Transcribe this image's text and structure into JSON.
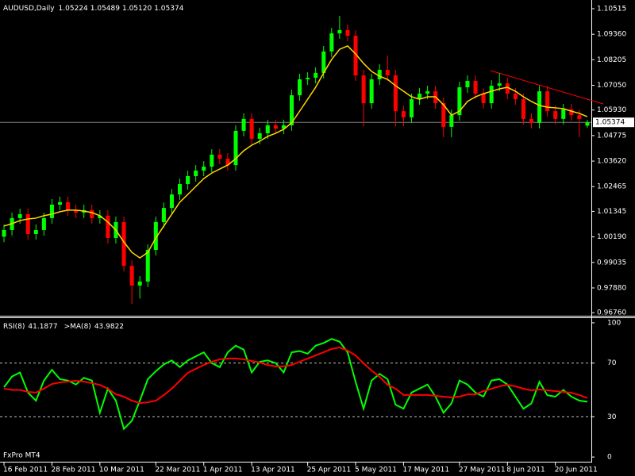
{
  "chart_data": [
    {
      "type": "candlestick",
      "title": "AUDUSD,Daily",
      "ohlc_labels": [
        "1.05224",
        "1.05489",
        "1.05120",
        "1.05374"
      ],
      "up_color": "#00ff00",
      "down_color": "#ff0000",
      "ma_color": "#ffd700",
      "open": [
        1.002,
        1.005,
        1.0104,
        1.0122,
        1.0032,
        1.005,
        1.0104,
        1.0165,
        1.0176,
        1.014,
        1.0129,
        1.014,
        1.0104,
        1.0115,
        1.0014,
        1.0086,
        0.9888,
        0.9799,
        0.9817,
        0.996,
        1.0086,
        1.015,
        1.0211,
        1.0258,
        1.0294,
        1.0319,
        1.0337,
        1.0391,
        1.0373,
        1.0344,
        1.0499,
        1.0553,
        1.0463,
        1.0488,
        1.0524,
        1.0509,
        1.0524,
        1.066,
        1.0732,
        1.0739,
        1.0761,
        1.0858,
        1.094,
        1.0955,
        1.0929,
        1.075,
        1.0624,
        1.0732,
        1.0775,
        1.075,
        1.0588,
        1.056,
        1.0642,
        1.0667,
        1.0678,
        1.0624,
        1.0517,
        1.057,
        1.0696,
        1.0725,
        1.0667,
        1.0624,
        1.0703,
        1.0714,
        1.0667,
        1.0642,
        1.0553,
        1.0535,
        1.0678,
        1.0588,
        1.0553,
        1.0596,
        1.057,
        1.05224
      ],
      "high": [
        1.0075,
        1.0129,
        1.0147,
        1.0147,
        1.0075,
        1.0129,
        1.019,
        1.0201,
        1.0201,
        1.0165,
        1.0165,
        1.0165,
        1.014,
        1.014,
        1.0111,
        1.0111,
        0.9913,
        0.9842,
        0.9985,
        1.0111,
        1.0175,
        1.0236,
        1.0283,
        1.0319,
        1.0344,
        1.0362,
        1.0416,
        1.0416,
        1.0398,
        1.0524,
        1.0578,
        1.0578,
        1.0513,
        1.0549,
        1.0549,
        1.0549,
        1.0685,
        1.0757,
        1.0764,
        1.0786,
        1.0883,
        1.0965,
        1.1019,
        1.098,
        1.0954,
        1.0775,
        1.0757,
        1.08,
        1.084,
        1.0775,
        1.0613,
        1.0667,
        1.0692,
        1.0703,
        1.0703,
        1.0649,
        1.0595,
        1.0721,
        1.075,
        1.075,
        1.0692,
        1.0728,
        1.076,
        1.0739,
        1.0692,
        1.0667,
        1.0578,
        1.0703,
        1.0703,
        1.0613,
        1.0621,
        1.0621,
        1.0595,
        1.05489
      ],
      "low": [
        0.9995,
        1.0025,
        1.0079,
        1.0007,
        1.0007,
        1.0025,
        1.0079,
        1.014,
        1.0115,
        1.0104,
        1.0104,
        1.0079,
        1.0079,
        0.9989,
        0.9989,
        0.9863,
        0.9716,
        0.974,
        0.9792,
        0.9935,
        1.0061,
        1.0125,
        1.0186,
        1.0233,
        1.0269,
        1.0294,
        1.0312,
        1.0348,
        1.0319,
        1.0319,
        1.0474,
        1.0438,
        1.0438,
        1.0463,
        1.0484,
        1.0484,
        1.0499,
        1.0635,
        1.0707,
        1.0714,
        1.0736,
        1.0833,
        1.0915,
        1.0904,
        1.0725,
        1.052,
        1.0599,
        1.0707,
        1.0725,
        1.052,
        1.052,
        1.0535,
        1.0617,
        1.0642,
        1.0599,
        1.047,
        1.047,
        1.0545,
        1.0671,
        1.0642,
        1.0599,
        1.0599,
        1.0678,
        1.0642,
        1.0617,
        1.0528,
        1.051,
        1.051,
        1.0563,
        1.0528,
        1.0528,
        1.0545,
        1.047,
        1.0512
      ],
      "close": [
        1.005,
        1.0104,
        1.0122,
        1.0032,
        1.005,
        1.0104,
        1.0165,
        1.0176,
        1.014,
        1.0129,
        1.014,
        1.0104,
        1.0115,
        1.0014,
        1.0086,
        0.9888,
        0.9799,
        0.9817,
        0.996,
        1.0086,
        1.015,
        1.0211,
        1.0258,
        1.0294,
        1.0319,
        1.0337,
        1.0391,
        1.0373,
        1.0344,
        1.0499,
        1.0553,
        1.0463,
        1.0488,
        1.0524,
        1.0509,
        1.0524,
        1.066,
        1.0732,
        1.0739,
        1.0761,
        1.0858,
        1.094,
        1.0955,
        1.0929,
        1.075,
        1.0624,
        1.0732,
        1.0775,
        1.075,
        1.0588,
        1.056,
        1.0642,
        1.0667,
        1.0678,
        1.0624,
        1.0517,
        1.057,
        1.0696,
        1.0725,
        1.0667,
        1.0624,
        1.0703,
        1.0714,
        1.0667,
        1.0642,
        1.0553,
        1.0535,
        1.0678,
        1.0588,
        1.0553,
        1.0596,
        1.057,
        1.0553,
        1.05374
      ],
      "ma": [
        1.0068,
        1.0079,
        1.0093,
        1.01,
        1.0104,
        1.0115,
        1.0122,
        1.0133,
        1.014,
        1.014,
        1.0136,
        1.0129,
        1.0115,
        1.0086,
        1.005,
        0.9996,
        0.9949,
        0.9924,
        0.9949,
        1.0014,
        1.0068,
        1.0122,
        1.0176,
        1.0211,
        1.0247,
        1.0283,
        1.0308,
        1.0326,
        1.0344,
        1.0373,
        1.0409,
        1.0434,
        1.0452,
        1.0474,
        1.0488,
        1.0506,
        1.0535,
        1.0588,
        1.0642,
        1.0696,
        1.0761,
        1.0822,
        1.0868,
        1.0883,
        1.0847,
        1.0804,
        1.0768,
        1.0746,
        1.0732,
        1.0703,
        1.0678,
        1.0653,
        1.0642,
        1.0653,
        1.0653,
        1.0617,
        1.057,
        1.0588,
        1.0632,
        1.0653,
        1.0667,
        1.0678,
        1.0689,
        1.0696,
        1.0678,
        1.0653,
        1.0632,
        1.0614,
        1.0606,
        1.0603,
        1.0599,
        1.0588,
        1.0578,
        1.0563
      ],
      "xlim": [
        -0.5,
        73.5
      ],
      "xticks": [
        {
          "value": 0,
          "label": "16 Feb 2011"
        },
        {
          "value": 6,
          "label": "28 Feb 2011"
        },
        {
          "value": 12,
          "label": "10 Mar 2011"
        },
        {
          "value": 19,
          "label": "22 Mar 2011"
        },
        {
          "value": 25,
          "label": "1 Apr 2011"
        },
        {
          "value": 31,
          "label": "13 Apr 2011"
        },
        {
          "value": 38,
          "label": "25 Apr 2011"
        },
        {
          "value": 44,
          "label": "5 May 2011"
        },
        {
          "value": 50,
          "label": "17 May 2011"
        },
        {
          "value": 57,
          "label": "27 May 2011"
        },
        {
          "value": 63,
          "label": "8 Jun 2011"
        },
        {
          "value": 69,
          "label": "20 Jun 2011"
        }
      ],
      "ylim": [
        0.96622,
        1.1091
      ],
      "yticks": [
        1.10515,
        {
          "value": 1.0936,
          "label": "1.09360"
        },
        1.08205,
        {
          "value": 1.0705,
          "label": "1.07050"
        },
        {
          "value": 1.0593,
          "label": "1.05930"
        },
        1.04775,
        {
          "value": 1.0362,
          "label": "1.03620"
        },
        1.02465,
        1.01345,
        {
          "value": 1.0019,
          "label": "1.00190"
        },
        0.99035,
        {
          "value": 0.9788,
          "label": "0.97880"
        },
        {
          "value": 0.9676,
          "label": "0.96760"
        }
      ],
      "price_line": {
        "value": 1.05374,
        "label": "1.05374"
      }
    },
    {
      "type": "line",
      "annotation": "FxPro MT4",
      "xlim": [
        -0.5,
        73.5
      ],
      "ylim": [
        -3.5,
        104.1
      ],
      "yticks": [
        0,
        30,
        70,
        100
      ],
      "levels": [
        30,
        70
      ],
      "series": [
        {
          "name": "RSI(8)",
          "color": "#00ff00",
          "values": [
            52,
            60,
            63,
            48,
            42,
            57,
            65,
            58,
            57,
            54,
            59,
            57,
            33,
            51,
            42,
            21,
            27,
            42,
            58,
            64,
            69,
            72,
            67,
            72,
            75,
            78,
            70,
            67,
            78,
            83,
            80,
            63,
            71,
            72,
            70,
            63,
            78,
            79,
            77,
            83,
            85,
            88,
            86,
            78,
            56,
            36,
            57,
            62,
            58,
            39,
            36,
            48,
            51,
            54,
            45,
            33,
            40,
            57,
            54,
            48,
            45,
            57,
            58,
            54,
            45,
            36,
            40,
            56,
            46,
            45,
            50,
            45,
            42,
            41.1877
          ]
        },
        {
          "name": ">MA(8)",
          "color": "#ff0000",
          "values": [
            51,
            50,
            50,
            48.5,
            48,
            51,
            54.4,
            55.6,
            56.2,
            56.8,
            56.2,
            55.0,
            53.8,
            50.9,
            46.7,
            45.0,
            42.0,
            40.2,
            40.8,
            42.0,
            46.2,
            50.9,
            56.8,
            62.7,
            65.7,
            68.6,
            71.0,
            72.8,
            73.4,
            73.4,
            72.8,
            71.6,
            70.4,
            68.6,
            67.5,
            67.5,
            68.6,
            71.0,
            73.4,
            75.7,
            78.1,
            80.5,
            81.7,
            79.3,
            75.7,
            69.8,
            64.5,
            59.8,
            53.8,
            50.9,
            46.2,
            46.2,
            46.2,
            46.2,
            45.6,
            45.0,
            44.4,
            45.0,
            46.7,
            46.7,
            49.1,
            50.9,
            52.7,
            53.8,
            52.7,
            50.9,
            49.7,
            50.3,
            49.7,
            49.1,
            48.5,
            47.9,
            46.2,
            43.9822
          ]
        }
      ]
    }
  ]
}
